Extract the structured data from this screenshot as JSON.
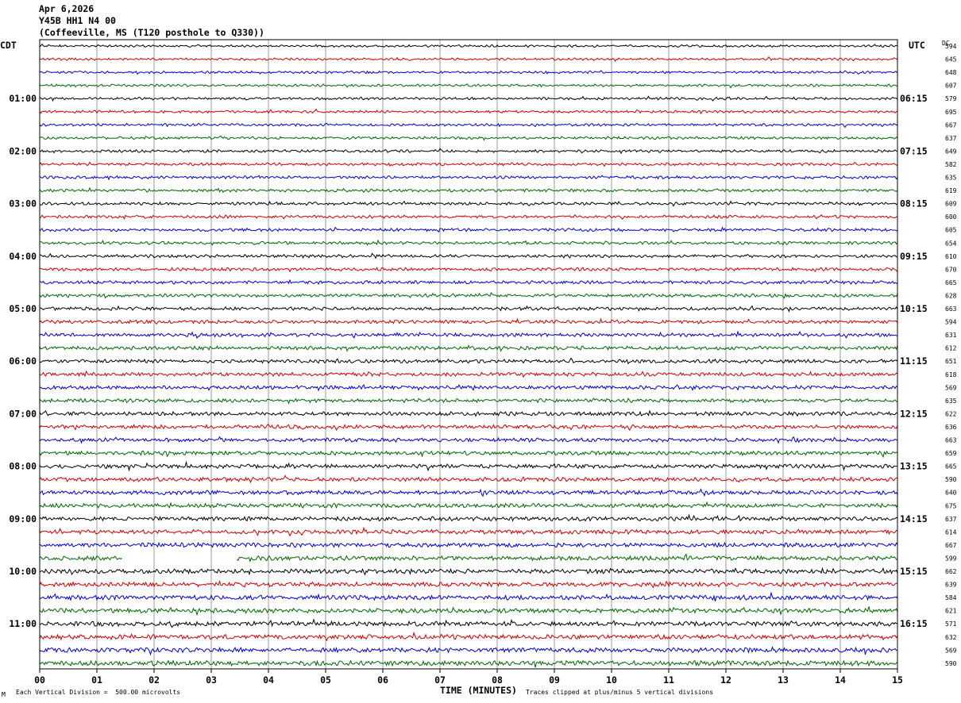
{
  "header": {
    "date": "Apr 6,2026",
    "station": "Y45B HH1 N4 00",
    "location": "(Coffeeville, MS (T120 posthole to Q330))"
  },
  "left_tz": "CDT",
  "right_tz": "UTC",
  "dc_label": "DC",
  "footer": {
    "scale_mark": "M",
    "scale_note": "Each Vertical Division =  500.00 microvolts",
    "clip_note": "Traces clipped at plus/minus 5 vertical divisions"
  },
  "colors": {
    "cycle": [
      "#000000",
      "#cc0000",
      "#0000cc",
      "#006600"
    ],
    "grid": "#999999",
    "frame": "#000000"
  },
  "chart_data": {
    "type": "line",
    "title": "Y45B HH1 N4 00",
    "xlabel": "TIME (MINUTES)",
    "x_ticks": [
      "00",
      "01",
      "02",
      "03",
      "04",
      "05",
      "06",
      "07",
      "08",
      "09",
      "10",
      "11",
      "12",
      "13",
      "14",
      "15"
    ],
    "xlim": [
      0,
      15
    ],
    "left_hour_labels": [
      "01:00",
      "02:00",
      "03:00",
      "04:00",
      "05:00",
      "06:00",
      "07:00",
      "08:00",
      "09:00",
      "10:00",
      "11:00"
    ],
    "right_hour_labels": [
      "06:15",
      "07:15",
      "08:15",
      "09:15",
      "10:15",
      "11:15",
      "12:15",
      "13:15",
      "14:15",
      "15:15",
      "16:15"
    ],
    "trace_count": 48,
    "traces_per_hour": 4,
    "dc_offsets": [
      594,
      645,
      648,
      607,
      579,
      695,
      667,
      637,
      649,
      582,
      635,
      619,
      609,
      600,
      605,
      654,
      610,
      670,
      665,
      628,
      663,
      594,
      631,
      612,
      651,
      618,
      569,
      635,
      622,
      636,
      663,
      659,
      665,
      590,
      640,
      675,
      637,
      614,
      667,
      599,
      662,
      639,
      584,
      621,
      571,
      632,
      569,
      590
    ],
    "gap": {
      "trace_index": 39,
      "from_minute": 1.45,
      "to_minute": 3.45
    }
  }
}
